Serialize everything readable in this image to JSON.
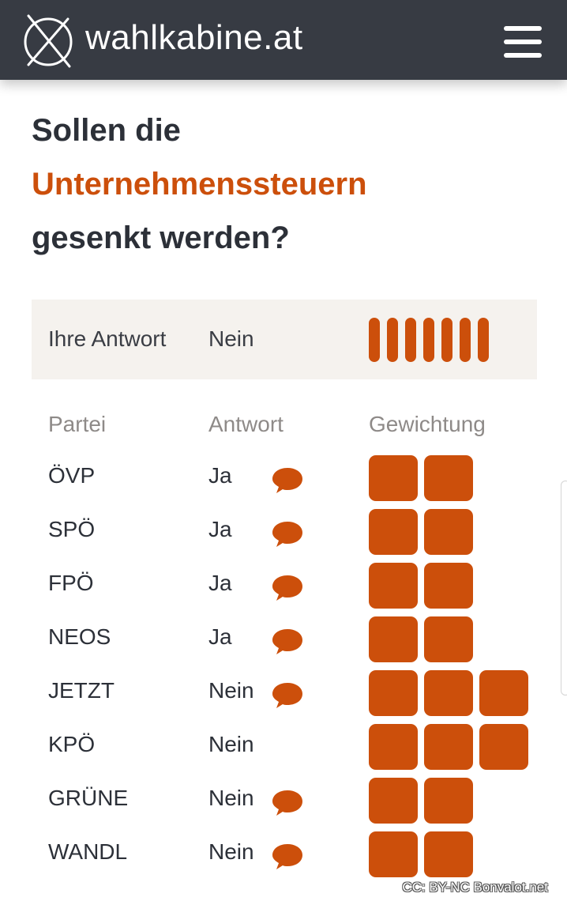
{
  "header": {
    "brand": "wahlkabine.at",
    "logo_icon": "ballot-cross-icon",
    "menu_icon": "hamburger-menu-icon"
  },
  "question": {
    "line1": "Sollen die",
    "highlight": "Unternehmenssteuern",
    "line3": "gesenkt werden?"
  },
  "your_answer": {
    "label": "Ihre Antwort",
    "value": "Nein",
    "weight_level": 7
  },
  "table": {
    "headers": {
      "party": "Partei",
      "answer": "Antwort",
      "weight": "Gewichtung"
    },
    "rows": [
      {
        "party": "ÖVP",
        "answer": "Ja",
        "comment": true,
        "weight": 2
      },
      {
        "party": "SPÖ",
        "answer": "Ja",
        "comment": true,
        "weight": 2
      },
      {
        "party": "FPÖ",
        "answer": "Ja",
        "comment": true,
        "weight": 2
      },
      {
        "party": "NEOS",
        "answer": "Ja",
        "comment": true,
        "weight": 2
      },
      {
        "party": "JETZT",
        "answer": "Nein",
        "comment": true,
        "weight": 3
      },
      {
        "party": "KPÖ",
        "answer": "Nein",
        "comment": false,
        "weight": 3
      },
      {
        "party": "GRÜNE",
        "answer": "Nein",
        "comment": true,
        "weight": 2
      },
      {
        "party": "WANDL",
        "answer": "Nein",
        "comment": true,
        "weight": 2
      }
    ]
  },
  "credit": "CC: BY-NC Bonvalot.net",
  "colors": {
    "accent": "#cc4f0b",
    "topbar": "#373b43",
    "answer_bg": "#f5f2ee",
    "header_text": "#8e8a88"
  }
}
